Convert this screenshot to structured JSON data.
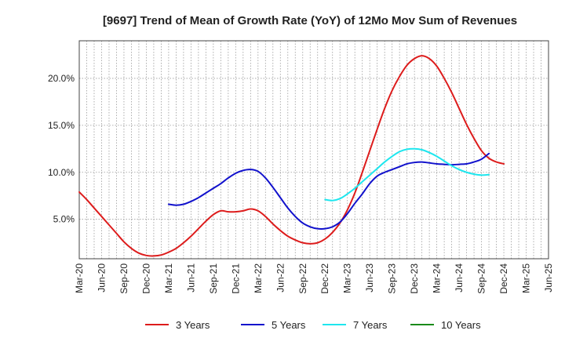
{
  "chart_data": {
    "type": "line",
    "title": "[9697]  Trend of Mean of Growth Rate (YoY) of 12Mo Mov Sum of Revenues",
    "xlabel": "",
    "ylabel": "",
    "ylim": [
      0.8,
      24.0
    ],
    "y_ticks": [
      5.0,
      10.0,
      15.0,
      20.0
    ],
    "y_tick_labels": [
      "5.0%",
      "10.0%",
      "15.0%",
      "20.0%"
    ],
    "x_tick_labels": [
      "Mar-20",
      "Jun-20",
      "Sep-20",
      "Dec-20",
      "Mar-21",
      "Jun-21",
      "Sep-21",
      "Dec-21",
      "Mar-22",
      "Jun-22",
      "Sep-22",
      "Dec-22",
      "Mar-23",
      "Jun-23",
      "Sep-23",
      "Dec-23",
      "Mar-24",
      "Jun-24",
      "Sep-24",
      "Dec-24",
      "Mar-25",
      "Jun-25"
    ],
    "grid": true,
    "legend_position": "bottom",
    "series": [
      {
        "name": "3 Years",
        "color": "#dd1c1c",
        "points": [
          [
            0,
            7.9
          ],
          [
            1,
            7.1
          ],
          [
            2,
            6.2
          ],
          [
            3,
            5.3
          ],
          [
            4,
            4.4
          ],
          [
            5,
            3.5
          ],
          [
            6,
            2.6
          ],
          [
            7,
            1.9
          ],
          [
            8,
            1.4
          ],
          [
            9,
            1.15
          ],
          [
            10,
            1.1
          ],
          [
            11,
            1.2
          ],
          [
            12,
            1.5
          ],
          [
            13,
            1.9
          ],
          [
            14,
            2.5
          ],
          [
            15,
            3.2
          ],
          [
            16,
            4.0
          ],
          [
            17,
            4.8
          ],
          [
            18,
            5.5
          ],
          [
            19,
            5.9
          ],
          [
            20,
            5.8
          ],
          [
            21,
            5.8
          ],
          [
            22,
            5.9
          ],
          [
            23,
            6.1
          ],
          [
            24,
            5.9
          ],
          [
            25,
            5.3
          ],
          [
            26,
            4.5
          ],
          [
            27,
            3.8
          ],
          [
            28,
            3.2
          ],
          [
            29,
            2.8
          ],
          [
            30,
            2.5
          ],
          [
            31,
            2.4
          ],
          [
            32,
            2.5
          ],
          [
            33,
            2.9
          ],
          [
            34,
            3.6
          ],
          [
            35,
            4.6
          ],
          [
            36,
            6.0
          ],
          [
            37,
            7.8
          ],
          [
            38,
            10.0
          ],
          [
            39,
            12.3
          ],
          [
            40,
            14.6
          ],
          [
            41,
            16.8
          ],
          [
            42,
            18.7
          ],
          [
            43,
            20.2
          ],
          [
            44,
            21.4
          ],
          [
            45,
            22.1
          ],
          [
            46,
            22.4
          ],
          [
            47,
            22.1
          ],
          [
            48,
            21.3
          ],
          [
            49,
            20.0
          ],
          [
            50,
            18.5
          ],
          [
            51,
            16.8
          ],
          [
            52,
            15.1
          ],
          [
            53,
            13.6
          ],
          [
            54,
            12.3
          ],
          [
            55,
            11.5
          ],
          [
            56,
            11.1
          ],
          [
            57,
            10.9
          ]
        ]
      },
      {
        "name": "5 Years",
        "color": "#1111cc",
        "points": [
          [
            12,
            6.6
          ],
          [
            13,
            6.5
          ],
          [
            14,
            6.6
          ],
          [
            15,
            6.9
          ],
          [
            16,
            7.3
          ],
          [
            17,
            7.8
          ],
          [
            18,
            8.3
          ],
          [
            19,
            8.8
          ],
          [
            20,
            9.4
          ],
          [
            21,
            9.9
          ],
          [
            22,
            10.2
          ],
          [
            23,
            10.3
          ],
          [
            24,
            10.1
          ],
          [
            25,
            9.4
          ],
          [
            26,
            8.4
          ],
          [
            27,
            7.3
          ],
          [
            28,
            6.2
          ],
          [
            29,
            5.3
          ],
          [
            30,
            4.6
          ],
          [
            31,
            4.2
          ],
          [
            32,
            4.0
          ],
          [
            33,
            4.0
          ],
          [
            34,
            4.2
          ],
          [
            35,
            4.7
          ],
          [
            36,
            5.6
          ],
          [
            37,
            6.7
          ],
          [
            38,
            7.7
          ],
          [
            39,
            8.8
          ],
          [
            40,
            9.6
          ],
          [
            41,
            10.0
          ],
          [
            42,
            10.3
          ],
          [
            43,
            10.6
          ],
          [
            44,
            10.9
          ],
          [
            45,
            11.05
          ],
          [
            46,
            11.1
          ],
          [
            47,
            11.0
          ],
          [
            48,
            10.9
          ],
          [
            49,
            10.85
          ],
          [
            50,
            10.8
          ],
          [
            51,
            10.85
          ],
          [
            52,
            10.9
          ],
          [
            53,
            11.1
          ],
          [
            54,
            11.4
          ],
          [
            55,
            12.0
          ]
        ]
      },
      {
        "name": "7 Years",
        "color": "#1ee6ee",
        "points": [
          [
            33,
            7.1
          ],
          [
            34,
            7.0
          ],
          [
            35,
            7.2
          ],
          [
            36,
            7.7
          ],
          [
            37,
            8.3
          ],
          [
            38,
            9.0
          ],
          [
            39,
            9.7
          ],
          [
            40,
            10.4
          ],
          [
            41,
            11.1
          ],
          [
            42,
            11.7
          ],
          [
            43,
            12.2
          ],
          [
            44,
            12.45
          ],
          [
            45,
            12.5
          ],
          [
            46,
            12.4
          ],
          [
            47,
            12.1
          ],
          [
            48,
            11.7
          ],
          [
            49,
            11.2
          ],
          [
            50,
            10.7
          ],
          [
            51,
            10.3
          ],
          [
            52,
            10.0
          ],
          [
            53,
            9.8
          ],
          [
            54,
            9.7
          ],
          [
            55,
            9.75
          ]
        ]
      },
      {
        "name": "10 Years",
        "color": "#1a8a1a",
        "points": []
      }
    ]
  }
}
